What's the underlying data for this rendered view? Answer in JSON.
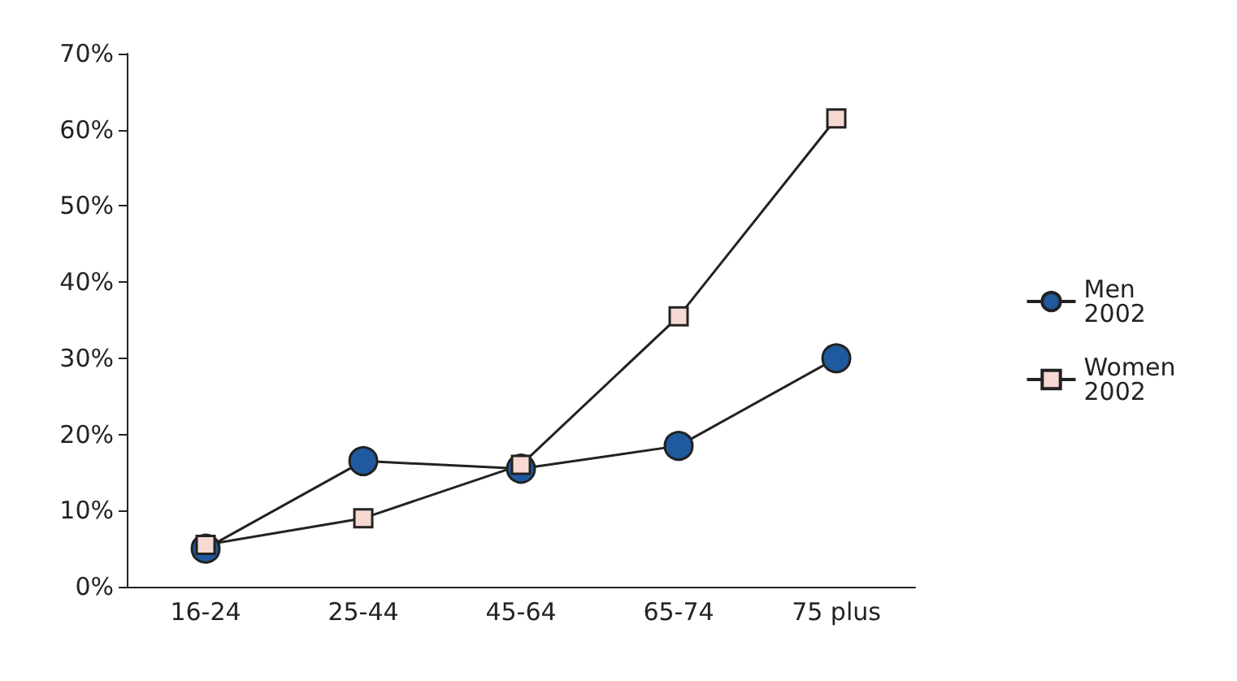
{
  "chart_data": {
    "type": "line",
    "categories": [
      "16-24",
      "25-44",
      "45-64",
      "65-74",
      "75 plus"
    ],
    "series": [
      {
        "name": "Men 2002",
        "color": "#1f5a9e",
        "marker": "circle",
        "values": [
          5,
          16.5,
          15.5,
          18.5,
          30
        ]
      },
      {
        "name": "Women 2002",
        "color": "#f6d9d3",
        "marker": "square",
        "values": [
          5.5,
          9,
          16,
          35.5,
          61.5
        ]
      }
    ],
    "ylim": [
      0,
      70
    ],
    "yticks": [
      {
        "value": 0,
        "label": "0%"
      },
      {
        "value": 10,
        "label": "10%"
      },
      {
        "value": 20,
        "label": "20%"
      },
      {
        "value": 30,
        "label": "30%"
      },
      {
        "value": 40,
        "label": "40%"
      },
      {
        "value": 50,
        "label": "50%"
      },
      {
        "value": 60,
        "label": "60%"
      },
      {
        "value": 70,
        "label": "70%"
      }
    ],
    "grid": false,
    "legend": "right",
    "line_style": "solid"
  }
}
